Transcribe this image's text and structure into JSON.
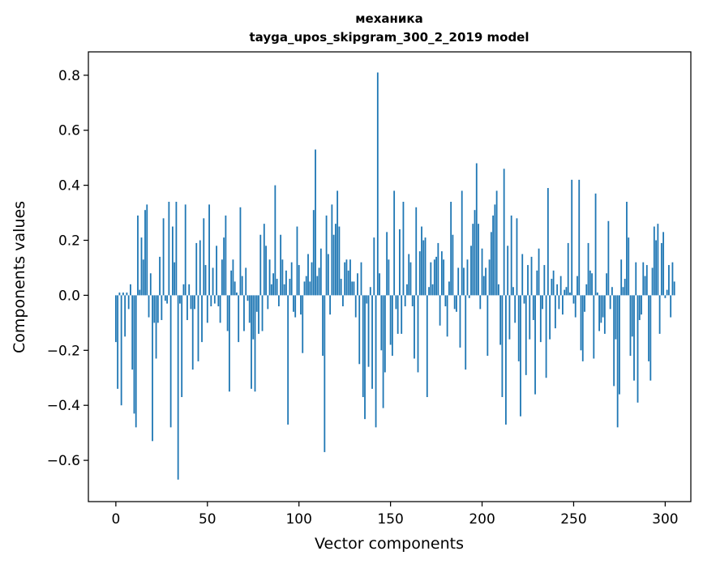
{
  "chart_data": {
    "type": "bar",
    "title": "механика",
    "subtitle": "tayga_upos_skipgram_300_2_2019 model",
    "xlabel": "Vector components",
    "ylabel": "Components values",
    "xlim": [
      -15,
      314
    ],
    "ylim": [
      -0.75,
      0.885
    ],
    "xticks": [
      0,
      50,
      100,
      150,
      200,
      250,
      300
    ],
    "xtick_labels": [
      "0",
      "50",
      "100",
      "150",
      "200",
      "250",
      "300"
    ],
    "yticks": [
      -0.6,
      -0.4,
      -0.2,
      0.0,
      0.2,
      0.4,
      0.6,
      0.8
    ],
    "ytick_labels": [
      "−0.6",
      "−0.4",
      "−0.2",
      "0.0",
      "0.2",
      "0.4",
      "0.6",
      "0.8"
    ],
    "bar_color": "#1f77b4",
    "grid": false,
    "legend": "none",
    "values": [
      -0.17,
      -0.34,
      0.01,
      -0.4,
      0.01,
      -0.15,
      0.01,
      -0.05,
      0.04,
      -0.27,
      -0.43,
      -0.48,
      0.29,
      0.02,
      0.21,
      0.13,
      0.31,
      0.33,
      -0.08,
      0.08,
      -0.53,
      -0.1,
      -0.23,
      -0.1,
      0.14,
      -0.09,
      0.28,
      -0.02,
      -0.03,
      0.34,
      -0.48,
      0.25,
      0.12,
      0.34,
      -0.67,
      -0.03,
      -0.37,
      0.04,
      0.33,
      -0.09,
      0.04,
      -0.05,
      -0.27,
      -0.05,
      0.19,
      -0.24,
      0.2,
      -0.17,
      0.28,
      0.11,
      -0.1,
      0.33,
      -0.04,
      0.1,
      -0.03,
      0.18,
      -0.04,
      -0.1,
      0.13,
      0.21,
      0.29,
      -0.13,
      -0.35,
      0.09,
      0.13,
      0.05,
      0.01,
      -0.17,
      0.32,
      0.07,
      -0.13,
      0.1,
      -0.02,
      -0.1,
      -0.34,
      -0.16,
      -0.35,
      -0.06,
      -0.14,
      0.22,
      -0.13,
      0.26,
      0.18,
      -0.05,
      0.13,
      0.04,
      0.08,
      0.4,
      0.06,
      -0.04,
      0.22,
      0.13,
      0.04,
      0.09,
      -0.47,
      0.06,
      0.12,
      -0.06,
      -0.08,
      0.25,
      0.11,
      -0.07,
      -0.21,
      0.05,
      0.07,
      0.15,
      0.05,
      0.12,
      0.31,
      0.53,
      0.07,
      0.1,
      0.17,
      -0.22,
      -0.57,
      0.29,
      0.15,
      -0.07,
      0.33,
      0.22,
      0.26,
      0.38,
      0.25,
      0.06,
      -0.04,
      0.12,
      0.13,
      0.09,
      0.13,
      0.05,
      0.05,
      -0.08,
      0.08,
      -0.25,
      0.12,
      -0.37,
      -0.45,
      -0.03,
      -0.26,
      0.03,
      -0.34,
      0.21,
      -0.48,
      0.81,
      0.08,
      -0.2,
      -0.41,
      -0.28,
      0.23,
      0.13,
      -0.18,
      -0.22,
      0.38,
      -0.05,
      -0.14,
      0.24,
      -0.14,
      0.34,
      -0.04,
      0.04,
      0.15,
      0.12,
      -0.04,
      -0.23,
      0.32,
      -0.28,
      0.16,
      0.25,
      0.2,
      0.21,
      -0.37,
      0.03,
      0.12,
      0.04,
      0.13,
      0.14,
      0.19,
      -0.11,
      0.16,
      0.13,
      -0.04,
      -0.15,
      0.05,
      0.34,
      0.22,
      -0.05,
      -0.06,
      0.1,
      -0.19,
      0.38,
      0.1,
      -0.27,
      0.13,
      -0.01,
      0.18,
      0.26,
      0.31,
      0.48,
      0.26,
      -0.05,
      0.17,
      0.07,
      0.1,
      -0.22,
      0.13,
      0.23,
      0.29,
      0.33,
      0.38,
      0.04,
      -0.18,
      -0.37,
      0.46,
      -0.47,
      0.18,
      -0.16,
      0.29,
      0.03,
      -0.1,
      0.28,
      -0.24,
      -0.44,
      0.15,
      -0.03,
      -0.29,
      0.11,
      -0.16,
      0.14,
      -0.09,
      -0.36,
      0.09,
      0.17,
      -0.17,
      -0.05,
      0.11,
      -0.3,
      0.39,
      -0.16,
      0.06,
      0.09,
      -0.12,
      0.04,
      -0.05,
      0.07,
      -0.07,
      0.02,
      0.03,
      0.19,
      0.01,
      0.42,
      -0.03,
      -0.08,
      0.07,
      0.42,
      -0.2,
      -0.24,
      -0.06,
      0.04,
      0.19,
      0.09,
      0.08,
      -0.23,
      0.37,
      0.01,
      -0.13,
      -0.1,
      -0.08,
      -0.14,
      0.08,
      0.27,
      -0.05,
      0.03,
      -0.33,
      -0.16,
      -0.48,
      -0.36,
      0.13,
      0.03,
      0.06,
      0.34,
      0.21,
      -0.22,
      -0.15,
      -0.31,
      0.12,
      -0.39,
      -0.09,
      -0.07,
      0.12,
      0.07,
      0.11,
      -0.24,
      -0.31,
      0.1,
      0.25,
      0.2,
      0.26,
      -0.14,
      0.19,
      0.23,
      -0.01,
      0.02,
      0.11,
      -0.08,
      0.12,
      0.05
    ]
  }
}
